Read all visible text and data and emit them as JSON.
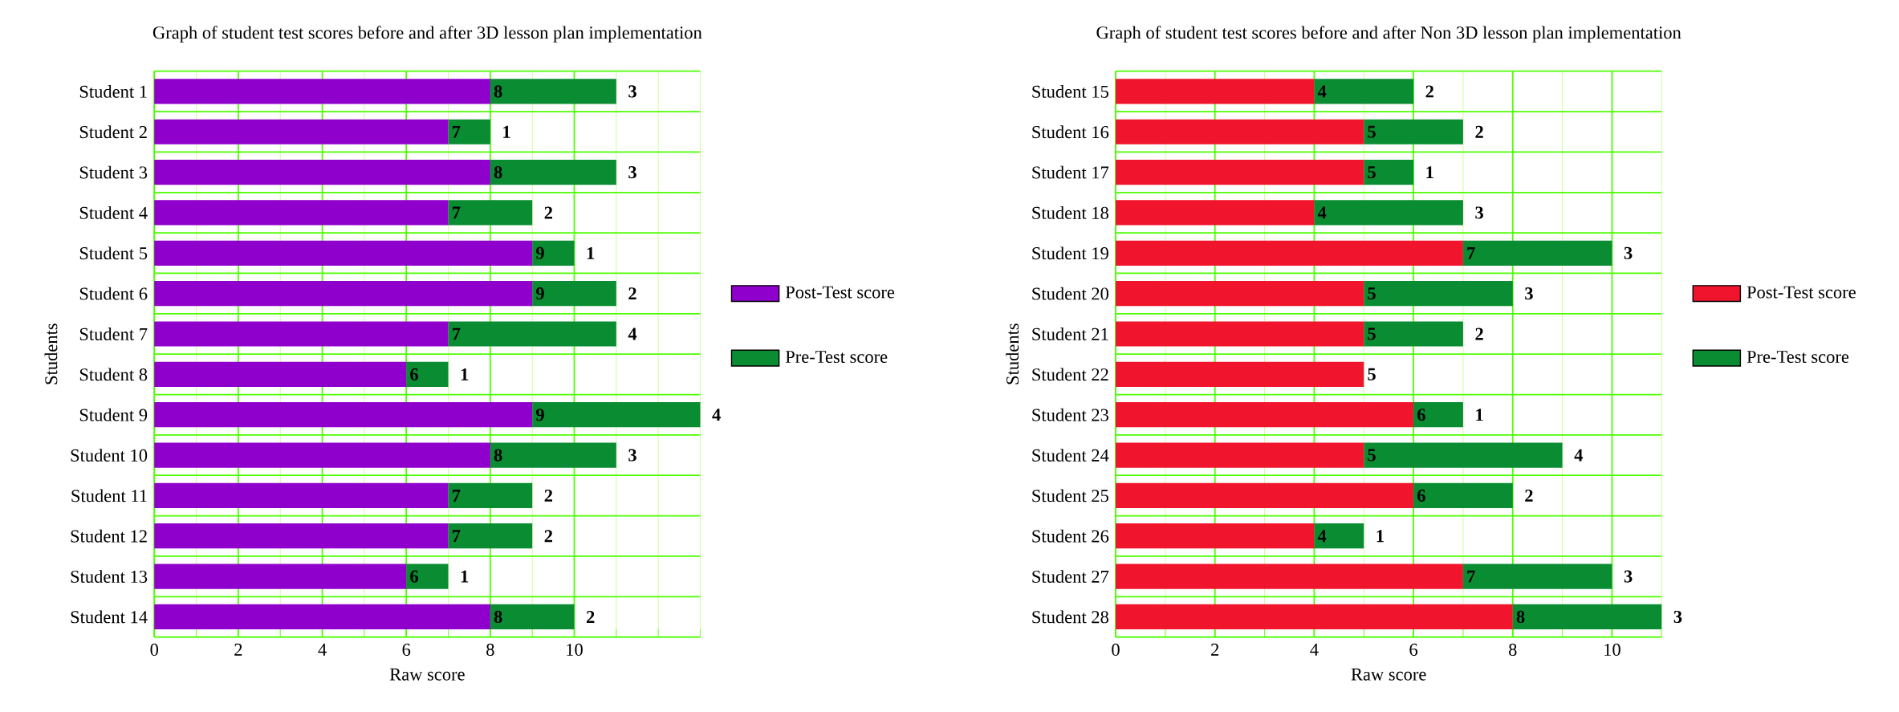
{
  "chart_data": [
    {
      "type": "bar",
      "orientation": "horizontal",
      "stacked": true,
      "title": "Graph of student test scores before and after 3D lesson plan implementation",
      "xlabel": "Raw score",
      "ylabel": "Students",
      "categories": [
        "Student 1",
        "Student 2",
        "Student 3",
        "Student 4",
        "Student 5",
        "Student 6",
        "Student 7",
        "Student 8",
        "Student 9",
        "Student 10",
        "Student 11",
        "Student 12",
        "Student 13",
        "Student 14"
      ],
      "series": [
        {
          "name": "Post-Test score",
          "color": "#9000cc",
          "values": [
            8,
            7,
            8,
            7,
            9,
            9,
            7,
            6,
            9,
            8,
            7,
            7,
            6,
            8
          ]
        },
        {
          "name": "Pre-Test score",
          "color": "#0a8c32",
          "values": [
            3,
            1,
            3,
            2,
            1,
            2,
            4,
            1,
            4,
            3,
            2,
            2,
            1,
            2
          ]
        }
      ],
      "xlim": [
        0,
        13
      ],
      "xticks": [
        0,
        2,
        4,
        6,
        8,
        10
      ],
      "grid": true,
      "legend": "right",
      "data_labels": true
    },
    {
      "type": "bar",
      "orientation": "horizontal",
      "stacked": true,
      "title": "Graph of student test scores before and after Non 3D lesson plan implementation",
      "xlabel": "Raw score",
      "ylabel": "Students",
      "categories": [
        "Student 15",
        "Student 16",
        "Student 17",
        "Student 18",
        "Student 19",
        "Student 20",
        "Student 21",
        "Student 22",
        "Student 23",
        "Student 24",
        "Student 25",
        "Student 26",
        "Student 27",
        "Student 28"
      ],
      "series": [
        {
          "name": "Post-Test score",
          "color": "#f0142d",
          "values": [
            4,
            5,
            5,
            4,
            7,
            5,
            5,
            5,
            6,
            5,
            6,
            4,
            7,
            8
          ]
        },
        {
          "name": "Pre-Test score",
          "color": "#0a8c32",
          "values": [
            2,
            2,
            1,
            3,
            3,
            3,
            2,
            null,
            1,
            4,
            2,
            1,
            3,
            3
          ]
        }
      ],
      "xlim": [
        0,
        11
      ],
      "xticks": [
        0,
        2,
        4,
        6,
        8,
        10
      ],
      "grid": true,
      "legend": "right",
      "data_labels": true
    }
  ]
}
